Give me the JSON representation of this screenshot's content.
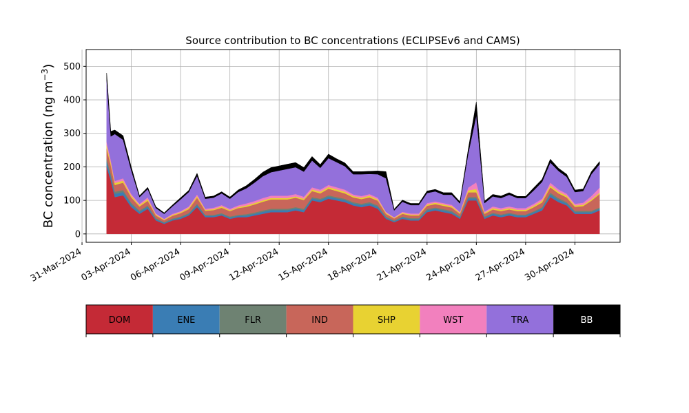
{
  "chart_data": {
    "type": "area",
    "stacked": true,
    "title": "Source contribution to BC concentrations (ECLIPSEv6 and CAMS)",
    "ylabel_main": "BC concentration (ng m",
    "ylabel_sup": "−3",
    "ylabel_close": ")",
    "ylim": [
      -25,
      550
    ],
    "yticks": [
      0,
      100,
      200,
      300,
      400,
      500
    ],
    "xlim": [
      "2024-03-31T06:00",
      "2024-05-02T18:00"
    ],
    "xticks": [
      "2024-03-31",
      "2024-04-03",
      "2024-04-06",
      "2024-04-09",
      "2024-04-12",
      "2024-04-15",
      "2024-04-18",
      "2024-04-21",
      "2024-04-24",
      "2024-04-27",
      "2024-04-30"
    ],
    "xtick_labels": [
      "31-Mar-2024",
      "03-Apr-2024",
      "06-Apr-2024",
      "09-Apr-2024",
      "12-Apr-2024",
      "15-Apr-2024",
      "18-Apr-2024",
      "21-Apr-2024",
      "24-Apr-2024",
      "27-Apr-2024",
      "30-Apr-2024"
    ],
    "grid": true,
    "legend_position": "bottom",
    "x": [
      "2024-04-01T12:00",
      "2024-04-01T18:00",
      "2024-04-02T00:00",
      "2024-04-02T12:00",
      "2024-04-03T00:00",
      "2024-04-03T12:00",
      "2024-04-04T00:00",
      "2024-04-04T12:00",
      "2024-04-05T00:00",
      "2024-04-05T12:00",
      "2024-04-06T00:00",
      "2024-04-06T12:00",
      "2024-04-07T00:00",
      "2024-04-07T12:00",
      "2024-04-08T00:00",
      "2024-04-08T12:00",
      "2024-04-09T00:00",
      "2024-04-09T12:00",
      "2024-04-10T00:00",
      "2024-04-10T12:00",
      "2024-04-11T00:00",
      "2024-04-11T12:00",
      "2024-04-12T00:00",
      "2024-04-12T12:00",
      "2024-04-13T00:00",
      "2024-04-13T12:00",
      "2024-04-14T00:00",
      "2024-04-14T12:00",
      "2024-04-15T00:00",
      "2024-04-15T12:00",
      "2024-04-16T00:00",
      "2024-04-16T12:00",
      "2024-04-17T00:00",
      "2024-04-17T12:00",
      "2024-04-18T00:00",
      "2024-04-18T12:00",
      "2024-04-19T00:00",
      "2024-04-19T12:00",
      "2024-04-20T00:00",
      "2024-04-20T12:00",
      "2024-04-21T00:00",
      "2024-04-21T12:00",
      "2024-04-22T00:00",
      "2024-04-22T12:00",
      "2024-04-23T00:00",
      "2024-04-23T12:00",
      "2024-04-24T00:00",
      "2024-04-24T12:00",
      "2024-04-25T00:00",
      "2024-04-25T12:00",
      "2024-04-26T00:00",
      "2024-04-26T12:00",
      "2024-04-27T00:00",
      "2024-04-27T12:00",
      "2024-04-28T00:00",
      "2024-04-28T12:00",
      "2024-04-29T00:00",
      "2024-04-29T12:00",
      "2024-04-30T00:00",
      "2024-04-30T12:00",
      "2024-05-01T00:00",
      "2024-05-01T12:00"
    ],
    "series": [
      {
        "name": "DOM",
        "color": "#c42a36",
        "values": [
          200,
          160,
          110,
          115,
          80,
          60,
          75,
          40,
          30,
          40,
          45,
          55,
          80,
          50,
          50,
          55,
          45,
          50,
          50,
          55,
          60,
          65,
          65,
          65,
          70,
          65,
          100,
          95,
          105,
          100,
          95,
          85,
          80,
          85,
          75,
          45,
          35,
          45,
          40,
          40,
          65,
          70,
          65,
          60,
          45,
          100,
          100,
          45,
          55,
          50,
          55,
          50,
          50,
          60,
          70,
          110,
          95,
          85,
          60,
          60,
          60,
          70
        ]
      },
      {
        "name": "ENE",
        "color": "#3a7db4",
        "values": [
          15,
          12,
          10,
          10,
          8,
          6,
          6,
          4,
          3,
          3,
          4,
          4,
          6,
          4,
          4,
          4,
          4,
          4,
          5,
          5,
          6,
          6,
          6,
          6,
          6,
          6,
          6,
          6,
          6,
          6,
          6,
          6,
          6,
          6,
          6,
          4,
          3,
          4,
          4,
          4,
          5,
          5,
          5,
          5,
          4,
          6,
          6,
          4,
          5,
          5,
          5,
          5,
          5,
          5,
          6,
          8,
          7,
          6,
          5,
          5,
          5,
          5
        ]
      },
      {
        "name": "FLR",
        "color": "#6e8272",
        "values": [
          10,
          8,
          6,
          6,
          5,
          4,
          4,
          3,
          2,
          3,
          3,
          3,
          4,
          3,
          3,
          3,
          3,
          3,
          4,
          4,
          4,
          4,
          4,
          4,
          4,
          4,
          4,
          4,
          4,
          4,
          4,
          4,
          4,
          4,
          4,
          3,
          2,
          3,
          3,
          3,
          4,
          4,
          4,
          4,
          3,
          4,
          4,
          3,
          3,
          3,
          3,
          3,
          3,
          3,
          4,
          5,
          5,
          4,
          4,
          4,
          4,
          4
        ]
      },
      {
        "name": "IND",
        "color": "#c8665a",
        "values": [
          30,
          25,
          20,
          22,
          16,
          12,
          14,
          8,
          6,
          8,
          10,
          12,
          18,
          12,
          14,
          16,
          16,
          20,
          22,
          24,
          26,
          28,
          28,
          28,
          28,
          26,
          18,
          16,
          20,
          18,
          16,
          14,
          14,
          14,
          14,
          8,
          6,
          8,
          8,
          8,
          10,
          10,
          10,
          10,
          8,
          14,
          14,
          8,
          10,
          10,
          10,
          10,
          10,
          12,
          14,
          16,
          14,
          14,
          12,
          14,
          30,
          40
        ]
      },
      {
        "name": "SHP",
        "color": "#e8d232",
        "values": [
          10,
          8,
          6,
          6,
          5,
          4,
          5,
          3,
          2,
          3,
          3,
          4,
          5,
          3,
          3,
          4,
          3,
          3,
          4,
          4,
          4,
          4,
          4,
          4,
          4,
          4,
          5,
          5,
          5,
          5,
          5,
          4,
          4,
          5,
          4,
          3,
          2,
          3,
          3,
          3,
          4,
          4,
          4,
          4,
          3,
          6,
          10,
          3,
          4,
          4,
          4,
          4,
          4,
          4,
          5,
          6,
          5,
          5,
          4,
          4,
          4,
          4
        ]
      },
      {
        "name": "WST",
        "color": "#f280be",
        "values": [
          10,
          8,
          6,
          7,
          5,
          4,
          5,
          3,
          2,
          3,
          3,
          4,
          5,
          3,
          4,
          4,
          4,
          5,
          6,
          6,
          7,
          7,
          7,
          7,
          7,
          6,
          6,
          6,
          6,
          6,
          6,
          5,
          5,
          5,
          5,
          3,
          2,
          3,
          3,
          3,
          4,
          4,
          4,
          4,
          3,
          8,
          20,
          4,
          5,
          5,
          5,
          5,
          5,
          6,
          6,
          8,
          7,
          6,
          5,
          6,
          10,
          15
        ]
      },
      {
        "name": "TRA",
        "color": "#9370db",
        "values": [
          185,
          70,
          140,
          115,
          70,
          20,
          25,
          16,
          15,
          22,
          35,
          43,
          55,
          30,
          30,
          35,
          30,
          40,
          45,
          55,
          65,
          70,
          75,
          80,
          80,
          75,
          80,
          65,
          80,
          75,
          70,
          60,
          65,
          60,
          70,
          100,
          20,
          30,
          25,
          25,
          30,
          30,
          25,
          30,
          25,
          100,
          200,
          25,
          30,
          30,
          35,
          30,
          30,
          40,
          50,
          60,
          55,
          50,
          35,
          35,
          65,
          70
        ]
      },
      {
        "name": "BB",
        "color": "#000000",
        "values": [
          20,
          15,
          12,
          12,
          10,
          4,
          5,
          4,
          3,
          4,
          5,
          5,
          8,
          5,
          5,
          5,
          5,
          6,
          8,
          10,
          12,
          14,
          14,
          14,
          14,
          12,
          12,
          10,
          12,
          10,
          10,
          8,
          8,
          8,
          10,
          20,
          4,
          5,
          5,
          5,
          6,
          6,
          6,
          6,
          5,
          12,
          40,
          6,
          6,
          6,
          6,
          5,
          5,
          8,
          8,
          10,
          8,
          8,
          6,
          6,
          8,
          8
        ]
      }
    ]
  }
}
